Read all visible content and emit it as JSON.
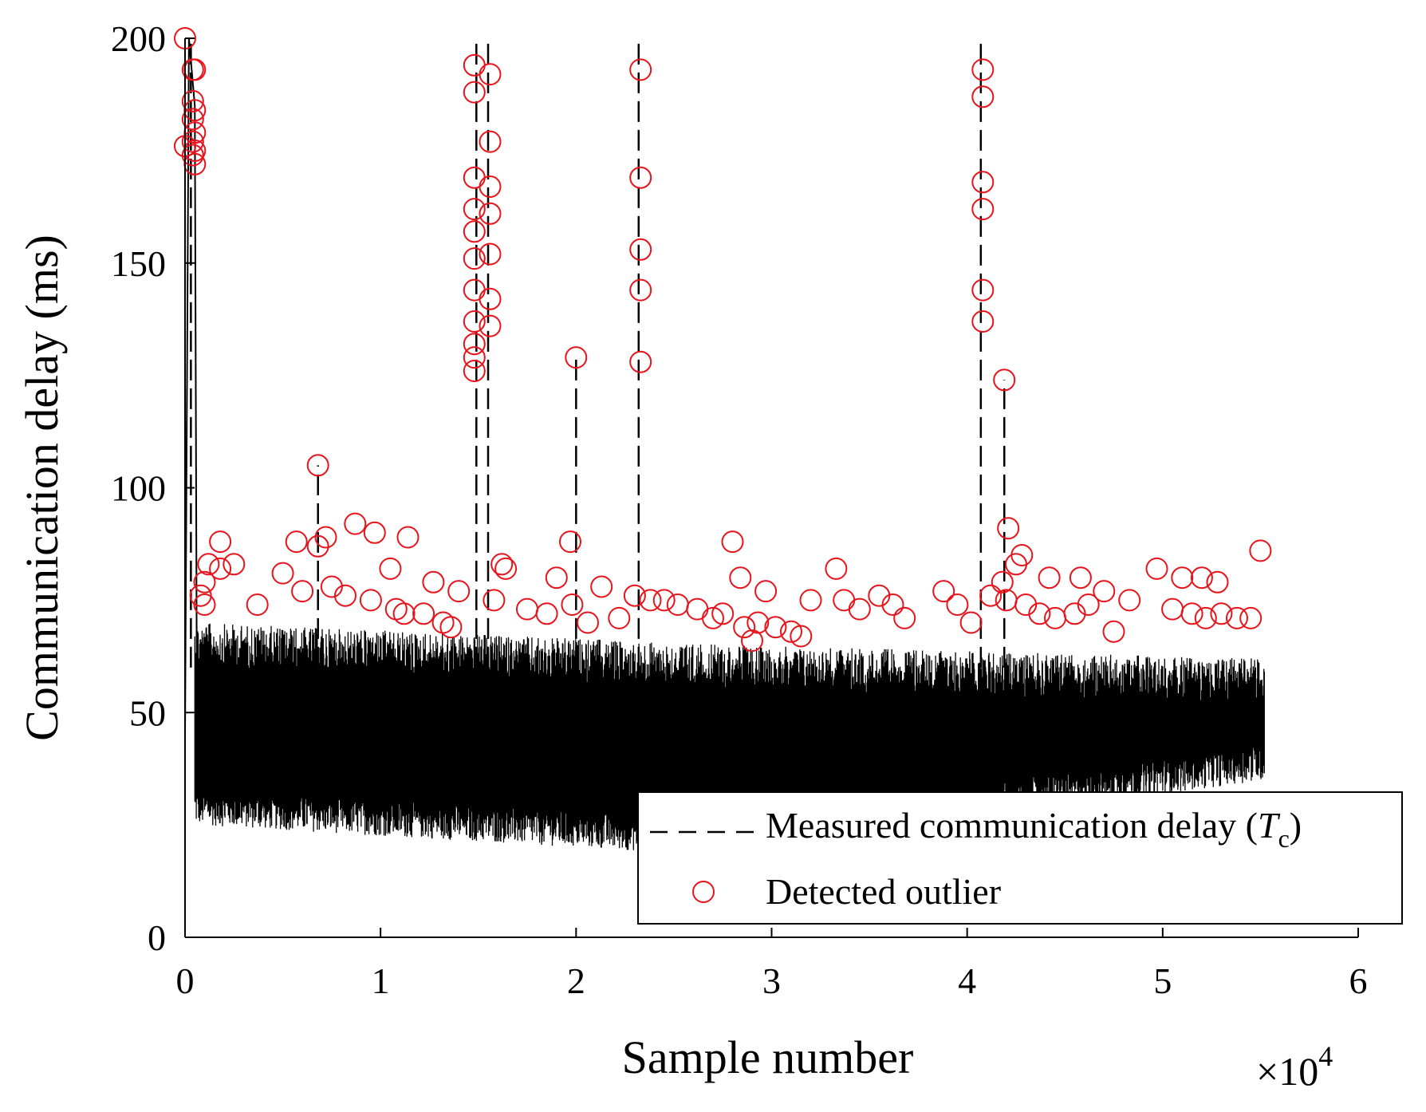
{
  "chart_data": {
    "type": "line",
    "title": "",
    "xlabel": "Sample number",
    "ylabel": "Communication delay (ms)",
    "x_multiplier": {
      "base": "×10",
      "exp": "4"
    },
    "xlim": [
      0,
      6
    ],
    "ylim": [
      0,
      200
    ],
    "xticks": [
      0,
      1,
      2,
      3,
      4,
      5,
      6
    ],
    "yticks": [
      0,
      50,
      100,
      150,
      200
    ],
    "xtick_labels": [
      "0",
      "1",
      "2",
      "3",
      "4",
      "5",
      "6"
    ],
    "ytick_labels": [
      "0",
      "50",
      "100",
      "150",
      "200"
    ],
    "grid": false,
    "legend": {
      "position": "bottom-right",
      "entries": [
        {
          "label_main": "Measured communication delay (",
          "label_var": "T",
          "label_sub": "c",
          "label_end": ")",
          "style": "dashed-black"
        },
        {
          "label": "Detected outlier",
          "style": "red-circle"
        }
      ]
    },
    "colors": {
      "series": "#000000",
      "outlier": "#e8141c"
    },
    "series": [
      {
        "name": "Measured communication delay (Tc)",
        "x_range_e4": [
          0,
          5.52
        ],
        "baseline_band_ms": {
          "start": [
            25,
            70
          ],
          "mid": [
            18,
            65
          ],
          "end": [
            35,
            62
          ]
        },
        "spikes": [
          {
            "x": 0.03,
            "y": 200
          },
          {
            "x": 1.49,
            "y": 200
          },
          {
            "x": 1.55,
            "y": 200
          },
          {
            "x": 2.32,
            "y": 200
          },
          {
            "x": 4.07,
            "y": 200
          },
          {
            "x": 4.19,
            "y": 124
          },
          {
            "x": 2.0,
            "y": 129
          },
          {
            "x": 0.68,
            "y": 105
          }
        ]
      }
    ],
    "outliers": [
      {
        "x": 0.0,
        "y": 200
      },
      {
        "x": 0.0,
        "y": 176
      },
      {
        "x": 0.04,
        "y": 193
      },
      {
        "x": 0.05,
        "y": 193
      },
      {
        "x": 0.04,
        "y": 186
      },
      {
        "x": 0.05,
        "y": 184
      },
      {
        "x": 0.04,
        "y": 182
      },
      {
        "x": 0.05,
        "y": 179
      },
      {
        "x": 0.04,
        "y": 177
      },
      {
        "x": 0.05,
        "y": 175
      },
      {
        "x": 0.04,
        "y": 174
      },
      {
        "x": 0.05,
        "y": 172
      },
      {
        "x": 1.48,
        "y": 194
      },
      {
        "x": 1.48,
        "y": 188
      },
      {
        "x": 1.48,
        "y": 169
      },
      {
        "x": 1.48,
        "y": 162
      },
      {
        "x": 1.48,
        "y": 157
      },
      {
        "x": 1.48,
        "y": 151
      },
      {
        "x": 1.48,
        "y": 144
      },
      {
        "x": 1.48,
        "y": 137
      },
      {
        "x": 1.48,
        "y": 132
      },
      {
        "x": 1.48,
        "y": 129
      },
      {
        "x": 1.48,
        "y": 126
      },
      {
        "x": 1.56,
        "y": 192
      },
      {
        "x": 1.56,
        "y": 177
      },
      {
        "x": 1.56,
        "y": 167
      },
      {
        "x": 1.56,
        "y": 161
      },
      {
        "x": 1.56,
        "y": 152
      },
      {
        "x": 1.56,
        "y": 142
      },
      {
        "x": 1.56,
        "y": 136
      },
      {
        "x": 2.33,
        "y": 193
      },
      {
        "x": 2.33,
        "y": 169
      },
      {
        "x": 2.33,
        "y": 153
      },
      {
        "x": 2.33,
        "y": 144
      },
      {
        "x": 2.33,
        "y": 128
      },
      {
        "x": 4.08,
        "y": 193
      },
      {
        "x": 4.08,
        "y": 187
      },
      {
        "x": 4.08,
        "y": 168
      },
      {
        "x": 4.08,
        "y": 162
      },
      {
        "x": 4.08,
        "y": 144
      },
      {
        "x": 4.08,
        "y": 137
      },
      {
        "x": 2.0,
        "y": 129
      },
      {
        "x": 4.19,
        "y": 124
      },
      {
        "x": 0.68,
        "y": 105
      },
      {
        "x": 0.18,
        "y": 88
      },
      {
        "x": 0.57,
        "y": 88
      },
      {
        "x": 0.87,
        "y": 92
      },
      {
        "x": 1.14,
        "y": 89
      },
      {
        "x": 1.97,
        "y": 88
      },
      {
        "x": 2.8,
        "y": 88
      },
      {
        "x": 4.21,
        "y": 91
      },
      {
        "x": 5.5,
        "y": 86
      },
      {
        "x": 0.72,
        "y": 89
      },
      {
        "x": 0.97,
        "y": 90
      },
      {
        "x": 0.18,
        "y": 82
      },
      {
        "x": 0.5,
        "y": 81
      },
      {
        "x": 1.05,
        "y": 82
      },
      {
        "x": 1.27,
        "y": 79
      },
      {
        "x": 1.64,
        "y": 82
      },
      {
        "x": 1.9,
        "y": 80
      },
      {
        "x": 2.13,
        "y": 78
      },
      {
        "x": 2.84,
        "y": 80
      },
      {
        "x": 3.33,
        "y": 82
      },
      {
        "x": 4.25,
        "y": 83
      },
      {
        "x": 4.28,
        "y": 85
      },
      {
        "x": 4.42,
        "y": 80
      },
      {
        "x": 4.58,
        "y": 80
      },
      {
        "x": 4.97,
        "y": 82
      },
      {
        "x": 5.1,
        "y": 80
      },
      {
        "x": 5.2,
        "y": 80
      },
      {
        "x": 5.28,
        "y": 79
      },
      {
        "x": 0.08,
        "y": 76
      },
      {
        "x": 0.1,
        "y": 74
      },
      {
        "x": 0.1,
        "y": 79
      },
      {
        "x": 0.12,
        "y": 83
      },
      {
        "x": 0.25,
        "y": 83
      },
      {
        "x": 0.37,
        "y": 74
      },
      {
        "x": 0.6,
        "y": 77
      },
      {
        "x": 0.75,
        "y": 78
      },
      {
        "x": 0.82,
        "y": 76
      },
      {
        "x": 0.95,
        "y": 75
      },
      {
        "x": 1.08,
        "y": 73
      },
      {
        "x": 1.12,
        "y": 72
      },
      {
        "x": 1.22,
        "y": 72
      },
      {
        "x": 1.32,
        "y": 70
      },
      {
        "x": 1.36,
        "y": 69
      },
      {
        "x": 1.4,
        "y": 77
      },
      {
        "x": 1.58,
        "y": 75
      },
      {
        "x": 1.75,
        "y": 73
      },
      {
        "x": 1.85,
        "y": 72
      },
      {
        "x": 1.98,
        "y": 74
      },
      {
        "x": 2.06,
        "y": 70
      },
      {
        "x": 2.22,
        "y": 71
      },
      {
        "x": 2.3,
        "y": 76
      },
      {
        "x": 2.38,
        "y": 75
      },
      {
        "x": 2.45,
        "y": 75
      },
      {
        "x": 2.52,
        "y": 74
      },
      {
        "x": 2.62,
        "y": 73
      },
      {
        "x": 2.7,
        "y": 71
      },
      {
        "x": 2.75,
        "y": 72
      },
      {
        "x": 2.86,
        "y": 69
      },
      {
        "x": 2.9,
        "y": 66
      },
      {
        "x": 2.93,
        "y": 70
      },
      {
        "x": 2.97,
        "y": 77
      },
      {
        "x": 3.02,
        "y": 69
      },
      {
        "x": 3.1,
        "y": 68
      },
      {
        "x": 3.15,
        "y": 67
      },
      {
        "x": 3.2,
        "y": 75
      },
      {
        "x": 3.37,
        "y": 75
      },
      {
        "x": 3.45,
        "y": 73
      },
      {
        "x": 3.55,
        "y": 76
      },
      {
        "x": 3.62,
        "y": 74
      },
      {
        "x": 3.68,
        "y": 71
      },
      {
        "x": 3.88,
        "y": 77
      },
      {
        "x": 3.95,
        "y": 74
      },
      {
        "x": 4.02,
        "y": 70
      },
      {
        "x": 4.12,
        "y": 76
      },
      {
        "x": 4.2,
        "y": 75
      },
      {
        "x": 4.3,
        "y": 74
      },
      {
        "x": 4.37,
        "y": 72
      },
      {
        "x": 4.45,
        "y": 71
      },
      {
        "x": 4.55,
        "y": 72
      },
      {
        "x": 4.62,
        "y": 74
      },
      {
        "x": 4.7,
        "y": 77
      },
      {
        "x": 4.75,
        "y": 68
      },
      {
        "x": 4.83,
        "y": 75
      },
      {
        "x": 5.05,
        "y": 73
      },
      {
        "x": 5.15,
        "y": 72
      },
      {
        "x": 5.22,
        "y": 71
      },
      {
        "x": 5.3,
        "y": 72
      },
      {
        "x": 5.38,
        "y": 71
      },
      {
        "x": 5.45,
        "y": 71
      },
      {
        "x": 1.62,
        "y": 83
      },
      {
        "x": 0.68,
        "y": 87
      },
      {
        "x": 4.18,
        "y": 79
      }
    ]
  }
}
